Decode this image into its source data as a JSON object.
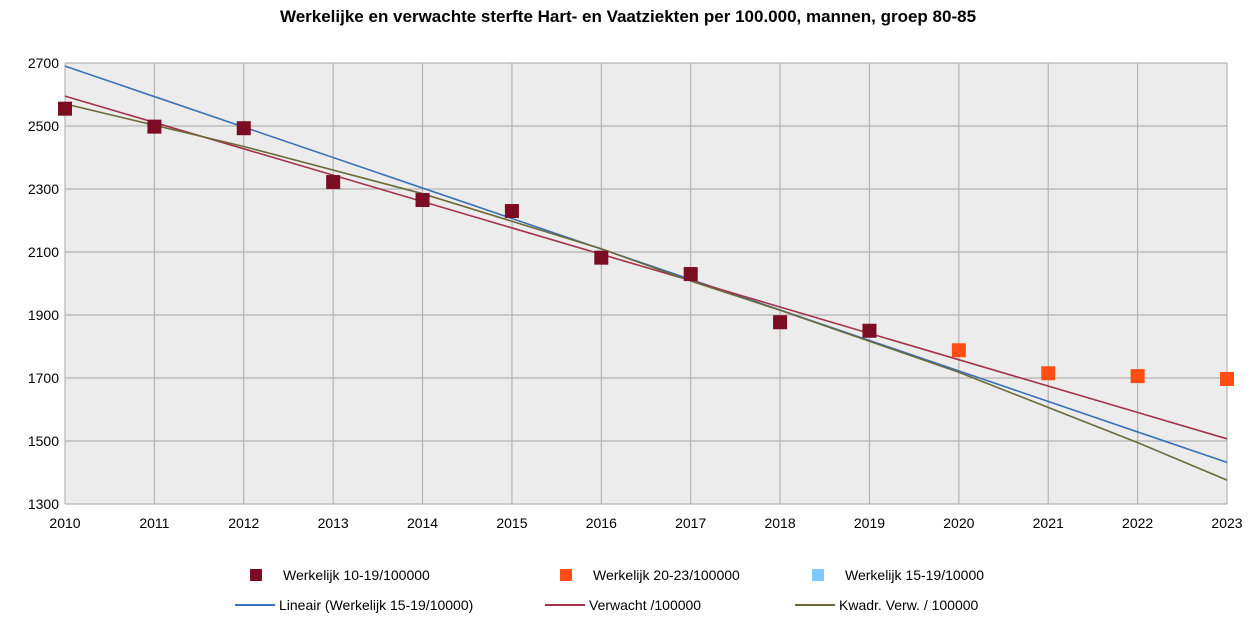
{
  "chart_data": {
    "type": "scatter",
    "title": "Werkelijke en verwachte sterfte Hart- en Vaatziekten per 100.000, mannen, groep 80-85",
    "xlabel": "",
    "ylabel": "",
    "xlim": [
      2010,
      2023
    ],
    "ylim": [
      1300,
      2700
    ],
    "x_ticks": [
      "2010",
      "2011",
      "2012",
      "2013",
      "2014",
      "2015",
      "2016",
      "2017",
      "2018",
      "2019",
      "2020",
      "2021",
      "2022",
      "2023"
    ],
    "y_ticks": [
      "1300",
      "1500",
      "1700",
      "1900",
      "2100",
      "2300",
      "2500",
      "2700"
    ],
    "grid": true,
    "legend_position": "bottom",
    "series": [
      {
        "name": "Werkelijk 10-19/100000",
        "kind": "marker",
        "color": "#7b0c24",
        "x": [
          2010,
          2011,
          2012,
          2013,
          2014,
          2015,
          2016,
          2017,
          2018,
          2019
        ],
        "y": [
          2555,
          2498,
          2493,
          2322,
          2265,
          2230,
          2082,
          2030,
          1877,
          1850
        ]
      },
      {
        "name": "Werkelijk 20-23/100000",
        "kind": "marker",
        "color": "#ff4d14",
        "x": [
          2020,
          2021,
          2022,
          2023
        ],
        "y": [
          1788,
          1715,
          1706,
          1697
        ]
      },
      {
        "name": "Werkelijk 15-19/10000",
        "kind": "marker",
        "color": "#7fc7ff",
        "x": [],
        "y": []
      },
      {
        "name": "Lineair (Werkelijk 15-19/10000)",
        "kind": "line",
        "color": "#3b6fb6",
        "x": [
          2010,
          2023
        ],
        "y": [
          2690,
          1432
        ]
      },
      {
        "name": "Verwacht /100000",
        "kind": "line",
        "color": "#a3324a",
        "x": [
          2010,
          2023
        ],
        "y": [
          2595,
          1507
        ]
      },
      {
        "name": "Kwadr. Verw. / 100000",
        "kind": "line",
        "color": "#6b6b3a",
        "x": [
          2010,
          2012,
          2014,
          2016,
          2017,
          2018,
          2020,
          2022,
          2023
        ],
        "y": [
          2570,
          2435,
          2285,
          2110,
          2008,
          1915,
          1718,
          1495,
          1376
        ]
      }
    ]
  }
}
